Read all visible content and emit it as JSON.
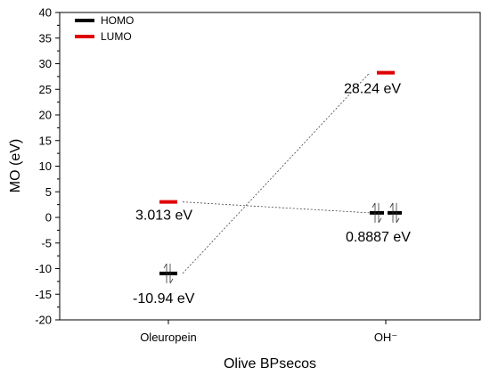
{
  "chart_data": {
    "type": "scatter",
    "title": "",
    "xlabel": "Olive BPsecos",
    "ylabel": "MO (eV)",
    "ylim": [
      -20,
      40
    ],
    "yticks": [
      -20,
      -15,
      -10,
      -5,
      0,
      5,
      10,
      15,
      20,
      25,
      30,
      35,
      40
    ],
    "ytick_labels": [
      "-20",
      "-15",
      "-10",
      "-5",
      "0",
      "5",
      "10",
      "15",
      "20",
      "25",
      "30",
      "35",
      "40"
    ],
    "categories": [
      "Oleuropein",
      "OH⁻"
    ],
    "legend": {
      "placement": "top-left",
      "entries": [
        {
          "name": "HOMO",
          "color": "#000000"
        },
        {
          "name": "LUMO",
          "color": "#e00000"
        }
      ]
    },
    "series": [
      {
        "name": "HOMO",
        "color": "#000000",
        "levels": [
          {
            "category": "Oleuropein",
            "value": -10.94,
            "label": "-10.94 eV"
          },
          {
            "category": "OH⁻",
            "value": 0.8887,
            "label": "0.8887 eV"
          }
        ]
      },
      {
        "name": "LUMO",
        "color": "#e00000",
        "levels": [
          {
            "category": "Oleuropein",
            "value": 3.013,
            "label": "3.013 eV"
          },
          {
            "category": "OH⁻",
            "value": 28.24,
            "label": "28.24 eV"
          }
        ]
      }
    ],
    "connections": [
      {
        "from": "Oleuropein HOMO",
        "to": "OH⁻ LUMO"
      },
      {
        "from": "Oleuropein LUMO",
        "to": "OH⁻ HOMO"
      }
    ]
  }
}
